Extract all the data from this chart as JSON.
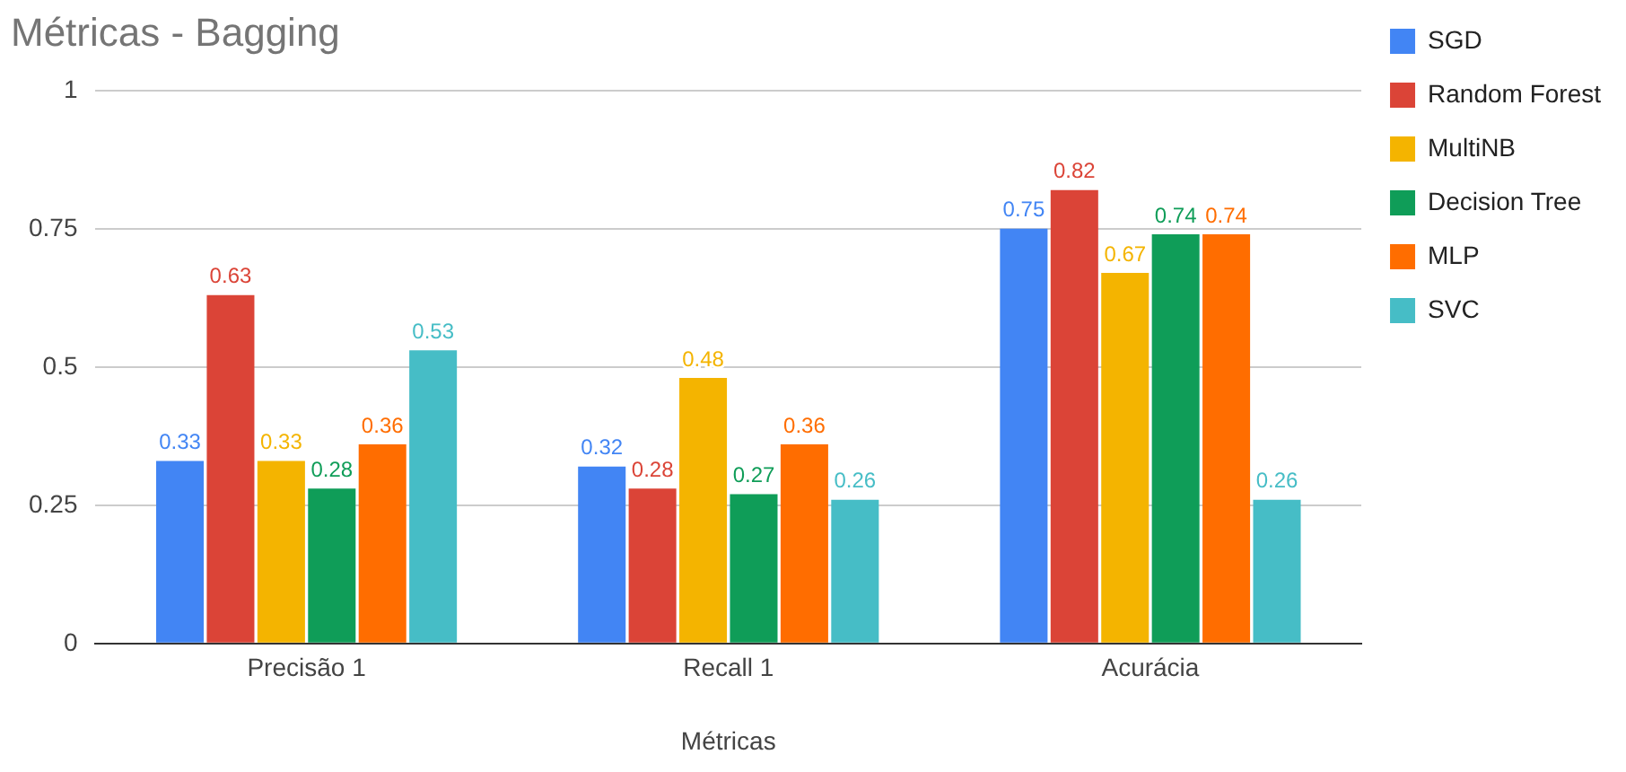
{
  "chart_data": {
    "type": "bar",
    "title": "Métricas - Bagging",
    "xlabel": "Métricas",
    "categories": [
      "Precisão 1",
      "Recall 1",
      "Acurácia"
    ],
    "series": [
      {
        "name": "SGD",
        "color": "#4285f4",
        "values": [
          0.33,
          0.32,
          0.75
        ]
      },
      {
        "name": "Random Forest",
        "color": "#db4437",
        "values": [
          0.63,
          0.28,
          0.82
        ]
      },
      {
        "name": "MultiNB",
        "color": "#f4b400",
        "values": [
          0.33,
          0.48,
          0.67
        ]
      },
      {
        "name": "Decision Tree",
        "color": "#0f9d58",
        "values": [
          0.28,
          0.27,
          0.74
        ]
      },
      {
        "name": "MLP",
        "color": "#ff6d00",
        "values": [
          0.36,
          0.36,
          0.74
        ]
      },
      {
        "name": "SVC",
        "color": "#46bdc6",
        "values": [
          0.53,
          0.26,
          0.26
        ]
      }
    ],
    "ylim": [
      0,
      1
    ],
    "yticks": [
      0,
      0.25,
      0.5,
      0.75,
      1
    ],
    "grid": "y",
    "legend": "right",
    "data_labels": true
  }
}
